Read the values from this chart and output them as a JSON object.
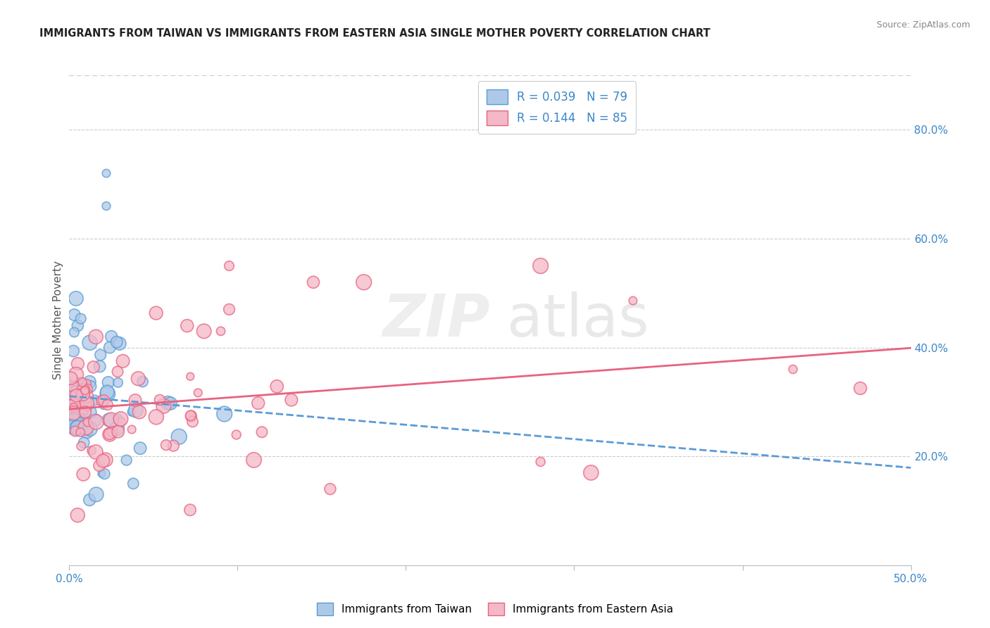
{
  "title": "IMMIGRANTS FROM TAIWAN VS IMMIGRANTS FROM EASTERN ASIA SINGLE MOTHER POVERTY CORRELATION CHART",
  "source": "Source: ZipAtlas.com",
  "ylabel": "Single Mother Poverty",
  "right_yticks": [
    "20.0%",
    "40.0%",
    "60.0%",
    "80.0%"
  ],
  "right_ytick_vals": [
    0.2,
    0.4,
    0.6,
    0.8
  ],
  "color_blue_fill": "#aec9e8",
  "color_blue_edge": "#5b9bd5",
  "color_pink_fill": "#f4b8c8",
  "color_pink_edge": "#e8637f",
  "color_blue_text": "#3b87c8",
  "color_axis_text": "#3b87c8",
  "background": "#ffffff",
  "xlim": [
    0.0,
    0.5
  ],
  "ylim": [
    0.0,
    0.9
  ],
  "legend_labels": [
    "R = 0.039   N = 79",
    "R = 0.144   N = 85"
  ]
}
